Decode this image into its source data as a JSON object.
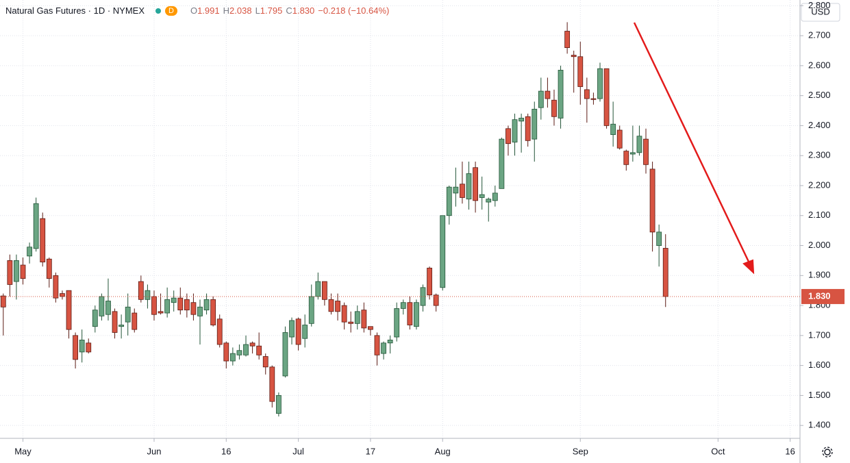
{
  "header": {
    "title": "Natural Gas Futures · 1D · NYMEX",
    "badge": "D",
    "quote": [
      [
        "O",
        "1.991"
      ],
      [
        "H",
        "2.038"
      ],
      [
        "L",
        "1.795"
      ],
      [
        "C",
        "1.830"
      ]
    ],
    "change": "−0.218 (−10.64%)"
  },
  "currency": "USD",
  "chart_data": {
    "type": "candlestick",
    "categories": [
      null,
      null,
      null,
      "May",
      null,
      null,
      null,
      null,
      null,
      null,
      null,
      null,
      null,
      null,
      null,
      null,
      null,
      null,
      null,
      null,
      null,
      null,
      null,
      "Jun",
      null,
      null,
      null,
      null,
      null,
      null,
      null,
      null,
      null,
      null,
      "16",
      null,
      null,
      null,
      null,
      null,
      null,
      null,
      null,
      null,
      null,
      "Jul",
      null,
      null,
      null,
      null,
      null,
      null,
      null,
      null,
      null,
      null,
      "17",
      null,
      null,
      null,
      null,
      null,
      null,
      null,
      null,
      null,
      null,
      "Aug",
      null,
      null,
      null,
      null,
      null,
      null,
      null,
      null,
      null,
      null,
      null,
      null,
      null,
      null,
      null,
      null,
      null,
      null,
      null,
      null,
      "Sep",
      null,
      null,
      null,
      null,
      null,
      null,
      null,
      null,
      null,
      null,
      null,
      null,
      null,
      null,
      null,
      null,
      null,
      null,
      null,
      null,
      "Oct",
      null,
      null,
      null,
      null,
      null,
      null,
      null,
      null,
      null,
      null,
      "16",
      null
    ],
    "open": [
      1.832,
      1.95,
      1.88,
      1.935,
      1.965,
      1.99,
      2.09,
      1.955,
      1.9,
      1.84,
      1.85,
      1.7,
      1.645,
      1.675,
      1.73,
      1.765,
      1.77,
      1.78,
      1.73,
      1.745,
      1.775,
      1.88,
      1.82,
      1.83,
      1.78,
      1.775,
      1.81,
      1.825,
      1.82,
      1.81,
      1.765,
      1.785,
      1.82,
      1.755,
      1.675,
      1.615,
      1.635,
      1.635,
      1.675,
      1.665,
      1.63,
      1.595,
      1.44,
      1.565,
      1.695,
      1.755,
      1.69,
      1.74,
      1.83,
      1.88,
      1.82,
      1.815,
      1.8,
      1.745,
      1.74,
      1.785,
      1.73,
      1.7,
      1.64,
      1.675,
      1.695,
      1.79,
      1.81,
      1.73,
      1.8,
      1.925,
      1.835,
      1.86,
      2.1,
      2.175,
      2.205,
      2.155,
      2.26,
      2.16,
      2.145,
      2.15,
      2.19,
      2.39,
      2.345,
      2.415,
      2.43,
      2.355,
      2.46,
      2.515,
      2.485,
      2.425,
      2.715,
      2.635,
      2.63,
      2.52,
      2.49,
      2.49,
      2.59,
      2.37,
      2.385,
      2.315,
      2.305,
      2.31,
      2.355,
      2.255,
      2.0,
      1.991,
      null,
      null,
      null,
      null,
      null,
      null,
      null,
      null,
      null,
      null,
      null,
      null,
      null,
      null,
      null,
      null,
      null,
      null,
      null,
      null
    ],
    "high": [
      1.84,
      1.97,
      1.97,
      1.96,
      2.01,
      2.16,
      2.11,
      1.96,
      1.91,
      1.85,
      1.85,
      1.71,
      1.72,
      1.69,
      1.8,
      1.84,
      1.89,
      1.79,
      1.77,
      1.84,
      1.79,
      1.9,
      1.87,
      1.85,
      1.84,
      1.86,
      1.85,
      1.86,
      1.84,
      1.84,
      1.82,
      1.84,
      1.83,
      1.77,
      1.68,
      1.66,
      1.67,
      1.7,
      1.68,
      1.71,
      1.64,
      1.6,
      1.51,
      1.73,
      1.76,
      1.76,
      1.77,
      1.87,
      1.91,
      1.88,
      1.84,
      1.84,
      1.81,
      1.78,
      1.8,
      1.81,
      1.73,
      1.71,
      1.68,
      1.7,
      1.81,
      1.82,
      1.83,
      1.82,
      1.87,
      1.93,
      1.84,
      2.1,
      2.2,
      2.26,
      2.28,
      2.28,
      2.28,
      2.23,
      2.16,
      2.2,
      2.36,
      2.4,
      2.44,
      2.44,
      2.44,
      2.48,
      2.56,
      2.56,
      2.52,
      2.6,
      2.745,
      2.65,
      2.68,
      2.56,
      2.51,
      2.61,
      2.59,
      2.48,
      2.4,
      2.32,
      2.4,
      2.4,
      2.39,
      2.28,
      2.07,
      2.038,
      null,
      null,
      null,
      null,
      null,
      null,
      null,
      null,
      null,
      null,
      null,
      null,
      null,
      null,
      null,
      null,
      null,
      null,
      null,
      null
    ],
    "low": [
      1.7,
      1.83,
      1.82,
      1.87,
      1.94,
      1.98,
      1.93,
      1.86,
      1.81,
      1.82,
      1.69,
      1.59,
      1.61,
      1.64,
      1.71,
      1.75,
      1.75,
      1.69,
      1.69,
      1.7,
      1.71,
      1.81,
      1.79,
      1.75,
      1.77,
      1.76,
      1.78,
      1.77,
      1.76,
      1.75,
      1.67,
      1.77,
      1.73,
      1.66,
      1.59,
      1.6,
      1.62,
      1.63,
      1.64,
      1.62,
      1.57,
      1.46,
      1.43,
      1.56,
      1.67,
      1.65,
      1.66,
      1.73,
      1.82,
      1.8,
      1.77,
      1.75,
      1.72,
      1.71,
      1.72,
      1.71,
      1.7,
      1.6,
      1.62,
      1.64,
      1.68,
      1.77,
      1.72,
      1.72,
      1.78,
      1.82,
      1.78,
      1.85,
      2.07,
      2.13,
      2.14,
      2.12,
      2.11,
      2.12,
      2.08,
      2.13,
      2.19,
      2.3,
      2.3,
      2.31,
      2.33,
      2.28,
      2.42,
      2.46,
      2.4,
      2.39,
      2.64,
      2.51,
      2.47,
      2.41,
      2.47,
      2.48,
      2.39,
      2.33,
      2.32,
      2.25,
      2.28,
      2.3,
      2.24,
      1.98,
      1.93,
      1.795,
      null,
      null,
      null,
      null,
      null,
      null,
      null,
      null,
      null,
      null,
      null,
      null,
      null,
      null,
      null,
      null,
      null,
      null,
      null,
      null
    ],
    "close": [
      1.795,
      1.87,
      1.95,
      1.89,
      1.995,
      2.14,
      1.945,
      1.89,
      1.825,
      1.83,
      1.72,
      1.62,
      1.685,
      1.645,
      1.785,
      1.83,
      1.815,
      1.71,
      1.735,
      1.795,
      1.72,
      1.82,
      1.85,
      1.77,
      1.775,
      1.82,
      1.825,
      1.785,
      1.785,
      1.77,
      1.795,
      1.82,
      1.735,
      1.67,
      1.615,
      1.64,
      1.65,
      1.67,
      1.665,
      1.635,
      1.595,
      1.48,
      1.5,
      1.71,
      1.75,
      1.67,
      1.735,
      1.83,
      1.88,
      1.82,
      1.78,
      1.78,
      1.745,
      1.74,
      1.78,
      1.725,
      1.72,
      1.635,
      1.675,
      1.685,
      1.79,
      1.81,
      1.735,
      1.81,
      1.86,
      1.835,
      1.8,
      2.1,
      2.195,
      2.195,
      2.16,
      2.24,
      2.15,
      2.17,
      2.155,
      2.175,
      2.355,
      2.34,
      2.42,
      2.425,
      2.35,
      2.455,
      2.515,
      2.49,
      2.43,
      2.585,
      2.66,
      2.63,
      2.53,
      2.49,
      2.487,
      2.59,
      2.4,
      2.405,
      2.325,
      2.27,
      2.31,
      2.365,
      2.27,
      2.045,
      2.045,
      1.83,
      null,
      null,
      null,
      null,
      null,
      null,
      null,
      null,
      null,
      null,
      null,
      null,
      null,
      null,
      null,
      null,
      null,
      null,
      null,
      null
    ],
    "up_color": "#6ba583",
    "down_color": "#d75442",
    "last_price": 1.83,
    "last_price_label": "1.830",
    "ylim": [
      1.357,
      2.819
    ],
    "yticks": [
      {
        "value": 1.4,
        "label": "1.400"
      },
      {
        "value": 1.5,
        "label": "1.500"
      },
      {
        "value": 1.6,
        "label": "1.600"
      },
      {
        "value": 1.7,
        "label": "1.700"
      },
      {
        "value": 1.8,
        "label": "1.800"
      },
      {
        "value": 1.9,
        "label": "1.900"
      },
      {
        "value": 2.0,
        "label": "2.000"
      },
      {
        "value": 2.1,
        "label": "2.100"
      },
      {
        "value": 2.2,
        "label": "2.200"
      },
      {
        "value": 2.3,
        "label": "2.300"
      },
      {
        "value": 2.4,
        "label": "2.400"
      },
      {
        "value": 2.5,
        "label": "2.500"
      },
      {
        "value": 2.6,
        "label": "2.600"
      },
      {
        "value": 2.7,
        "label": "2.700"
      },
      {
        "value": 2.8,
        "label": "2.800"
      }
    ],
    "grid": true
  }
}
